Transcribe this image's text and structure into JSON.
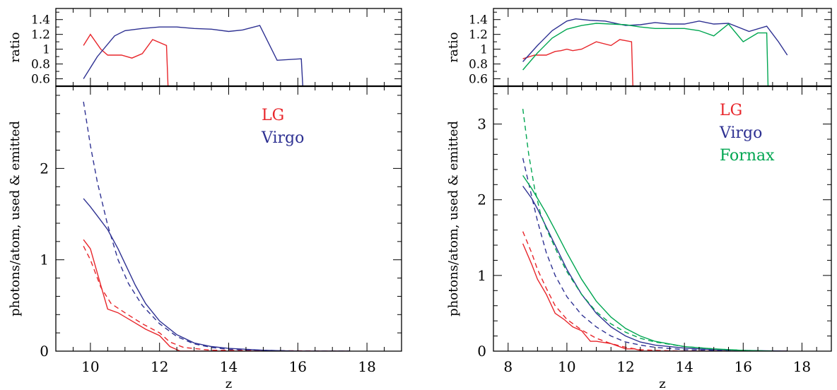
{
  "chart_data": [
    {
      "type": "line",
      "panel": "left",
      "ratio_plot": {
        "ylabel": "ratio",
        "ylim": [
          0.5,
          1.55
        ],
        "yticks": [
          0.6,
          0.8,
          1.0,
          1.2,
          1.4
        ],
        "ytick_labels": [
          "0.6",
          "0.8",
          "1",
          "1.2",
          "1.4"
        ],
        "series": [
          {
            "name": "LG",
            "color": "#e8262b",
            "x": [
              9.8,
              10.0,
              10.3,
              10.5,
              10.9,
              11.2,
              11.5,
              11.8,
              12.2,
              12.25
            ],
            "y": [
              1.05,
              1.2,
              1.0,
              0.92,
              0.92,
              0.88,
              0.94,
              1.13,
              1.05,
              0.45
            ]
          },
          {
            "name": "Virgo",
            "color": "#2e3192",
            "x": [
              9.8,
              10.2,
              10.7,
              11.0,
              11.5,
              12.0,
              12.5,
              13.0,
              13.5,
              14.0,
              14.4,
              14.9,
              15.4,
              16.1,
              16.15
            ],
            "y": [
              0.6,
              0.9,
              1.18,
              1.25,
              1.28,
              1.3,
              1.3,
              1.28,
              1.27,
              1.24,
              1.26,
              1.32,
              0.85,
              0.87,
              0.45
            ]
          }
        ]
      },
      "main_plot": {
        "ylabel": "photons/atom, used & emitted",
        "xlabel": "z",
        "xlim": [
          9,
          19
        ],
        "ylim": [
          0,
          2.9
        ],
        "xticks": [
          10,
          12,
          14,
          16,
          18
        ],
        "xtick_labels": [
          "10",
          "12",
          "14",
          "16",
          "18"
        ],
        "yticks": [
          0,
          1,
          2
        ],
        "ytick_labels": [
          "0",
          "1",
          "2"
        ],
        "legend": [
          "LG",
          "Virgo"
        ],
        "legend_position": "top-right",
        "series": [
          {
            "name": "LG",
            "style": "solid",
            "color": "#e8262b",
            "x": [
              9.8,
              10.0,
              10.3,
              10.5,
              10.8,
              11.2,
              11.6,
              12.0,
              12.3,
              12.6,
              14.0,
              17.5
            ],
            "y": [
              1.22,
              1.12,
              0.72,
              0.46,
              0.42,
              0.33,
              0.24,
              0.17,
              0.05,
              0.0,
              0.0,
              0.0
            ]
          },
          {
            "name": "LG",
            "style": "dashed",
            "color": "#e8262b",
            "x": [
              9.8,
              10.0,
              10.3,
              10.6,
              11.0,
              11.5,
              12.0,
              12.3,
              12.7,
              13.5,
              17.5
            ],
            "y": [
              1.15,
              1.0,
              0.7,
              0.52,
              0.42,
              0.3,
              0.2,
              0.1,
              0.04,
              0.01,
              0.0
            ]
          },
          {
            "name": "Virgo",
            "style": "solid",
            "color": "#2e3192",
            "x": [
              9.8,
              10.0,
              10.2,
              10.5,
              10.8,
              11.0,
              11.3,
              11.6,
              12.0,
              12.5,
              13.0,
              13.5,
              14.0,
              15.0,
              16.0,
              17.5
            ],
            "y": [
              1.67,
              1.58,
              1.48,
              1.33,
              1.12,
              0.96,
              0.72,
              0.52,
              0.33,
              0.18,
              0.09,
              0.05,
              0.03,
              0.01,
              0.0,
              0.0
            ]
          },
          {
            "name": "Virgo",
            "style": "dashed",
            "color": "#2e3192",
            "x": [
              9.8,
              10.0,
              10.2,
              10.5,
              10.8,
              11.1,
              11.5,
              12.0,
              12.5,
              13.0,
              13.5,
              14.0,
              15.0,
              16.0,
              17.5
            ],
            "y": [
              2.73,
              2.25,
              1.85,
              1.38,
              1.0,
              0.74,
              0.5,
              0.3,
              0.16,
              0.08,
              0.04,
              0.02,
              0.01,
              0.0,
              0.0
            ]
          }
        ]
      }
    },
    {
      "type": "line",
      "panel": "right",
      "ratio_plot": {
        "ylabel": "ratio",
        "ylim": [
          0.5,
          1.55
        ],
        "yticks": [
          0.6,
          0.8,
          1.0,
          1.2,
          1.4
        ],
        "ytick_labels": [
          "0.6",
          "0.8",
          "1",
          "1.2",
          "1.4"
        ],
        "series": [
          {
            "name": "LG",
            "color": "#e8262b",
            "x": [
              8.5,
              8.9,
              9.3,
              9.6,
              9.8,
              10.0,
              10.2,
              10.5,
              11.0,
              11.5,
              11.8,
              12.2,
              12.25
            ],
            "y": [
              0.87,
              0.92,
              0.92,
              0.97,
              0.98,
              1.0,
              0.98,
              1.0,
              1.1,
              1.05,
              1.13,
              1.1,
              0.45
            ]
          },
          {
            "name": "Virgo",
            "color": "#2e3192",
            "x": [
              8.5,
              9.0,
              9.5,
              10.0,
              10.3,
              10.8,
              11.3,
              12.0,
              12.5,
              13.0,
              13.5,
              14.0,
              14.5,
              15.0,
              15.5,
              16.2,
              16.8,
              17.2,
              17.5
            ],
            "y": [
              0.83,
              1.05,
              1.25,
              1.38,
              1.41,
              1.39,
              1.38,
              1.32,
              1.33,
              1.36,
              1.34,
              1.34,
              1.38,
              1.34,
              1.35,
              1.24,
              1.31,
              1.1,
              0.92
            ]
          },
          {
            "name": "Fornax",
            "color": "#00a651",
            "x": [
              8.5,
              9.0,
              9.5,
              10.0,
              10.5,
              11.0,
              11.5,
              12.0,
              12.5,
              13.0,
              13.5,
              14.0,
              14.5,
              15.0,
              15.5,
              16.0,
              16.5,
              16.8,
              16.85
            ],
            "y": [
              0.72,
              0.95,
              1.15,
              1.27,
              1.32,
              1.35,
              1.34,
              1.33,
              1.3,
              1.28,
              1.28,
              1.28,
              1.25,
              1.18,
              1.34,
              1.1,
              1.22,
              1.22,
              0.45
            ]
          }
        ]
      },
      "main_plot": {
        "ylabel": "photons/atom, used & emitted",
        "xlabel": "z",
        "xlim": [
          7.5,
          19
        ],
        "ylim": [
          0,
          3.5
        ],
        "xticks": [
          8,
          10,
          12,
          14,
          16,
          18
        ],
        "xtick_labels": [
          "8",
          "10",
          "12",
          "14",
          "16",
          "18"
        ],
        "yticks": [
          0,
          1,
          2,
          3
        ],
        "ytick_labels": [
          "0",
          "1",
          "2",
          "3"
        ],
        "legend": [
          "LG",
          "Virgo",
          "Fornax"
        ],
        "legend_position": "top-right",
        "series": [
          {
            "name": "LG",
            "style": "solid",
            "color": "#e8262b",
            "x": [
              8.5,
              8.8,
              9.0,
              9.3,
              9.6,
              9.9,
              10.2,
              10.5,
              10.8,
              11.0,
              11.5,
              12.0,
              12.3,
              12.6,
              14.0,
              17.5
            ],
            "y": [
              1.42,
              1.15,
              0.95,
              0.75,
              0.5,
              0.42,
              0.32,
              0.27,
              0.13,
              0.13,
              0.1,
              0.03,
              0.03,
              0.0,
              0.0,
              0.0
            ]
          },
          {
            "name": "LG",
            "style": "dashed",
            "color": "#e8262b",
            "x": [
              8.5,
              8.8,
              9.0,
              9.3,
              9.6,
              10.0,
              10.5,
              11.0,
              11.5,
              12.0,
              12.5,
              13.0,
              14.0,
              17.5
            ],
            "y": [
              1.58,
              1.3,
              1.08,
              0.83,
              0.6,
              0.42,
              0.28,
              0.17,
              0.1,
              0.05,
              0.02,
              0.01,
              0.0,
              0.0
            ]
          },
          {
            "name": "Virgo",
            "style": "solid",
            "color": "#2e3192",
            "x": [
              8.5,
              8.8,
              9.0,
              9.3,
              9.6,
              10.0,
              10.5,
              11.0,
              11.5,
              12.0,
              12.5,
              13.0,
              14.0,
              15.0,
              16.0,
              17.5
            ],
            "y": [
              2.18,
              2.02,
              1.88,
              1.64,
              1.4,
              1.08,
              0.75,
              0.5,
              0.32,
              0.2,
              0.12,
              0.08,
              0.04,
              0.02,
              0.01,
              0.0
            ]
          },
          {
            "name": "Virgo",
            "style": "dashed",
            "color": "#2e3192",
            "x": [
              8.5,
              8.8,
              9.0,
              9.3,
              9.6,
              10.0,
              10.5,
              11.0,
              11.5,
              12.0,
              12.5,
              13.0,
              14.0,
              15.0,
              16.0,
              17.5
            ],
            "y": [
              2.55,
              2.05,
              1.72,
              1.3,
              1.0,
              0.72,
              0.48,
              0.32,
              0.2,
              0.12,
              0.08,
              0.05,
              0.02,
              0.01,
              0.0,
              0.0
            ]
          },
          {
            "name": "Fornax",
            "style": "solid",
            "color": "#00a651",
            "x": [
              8.5,
              8.8,
              9.0,
              9.3,
              9.6,
              10.0,
              10.5,
              11.0,
              11.5,
              12.0,
              12.5,
              13.0,
              14.0,
              15.0,
              16.0,
              17.0
            ],
            "y": [
              2.32,
              2.15,
              2.02,
              1.82,
              1.6,
              1.3,
              0.95,
              0.66,
              0.45,
              0.3,
              0.2,
              0.13,
              0.06,
              0.03,
              0.01,
              0.0
            ]
          },
          {
            "name": "Fornax",
            "style": "dashed",
            "color": "#00a651",
            "x": [
              8.5,
              8.7,
              8.9,
              9.1,
              9.3,
              9.5,
              9.7,
              10.0,
              10.5,
              11.0,
              11.5,
              12.0,
              12.5,
              13.0,
              14.0,
              15.0,
              16.0,
              17.0
            ],
            "y": [
              3.2,
              2.6,
              2.15,
              1.82,
              1.62,
              1.45,
              1.28,
              1.05,
              0.75,
              0.52,
              0.36,
              0.25,
              0.17,
              0.12,
              0.06,
              0.03,
              0.01,
              0.0
            ]
          }
        ]
      }
    }
  ]
}
